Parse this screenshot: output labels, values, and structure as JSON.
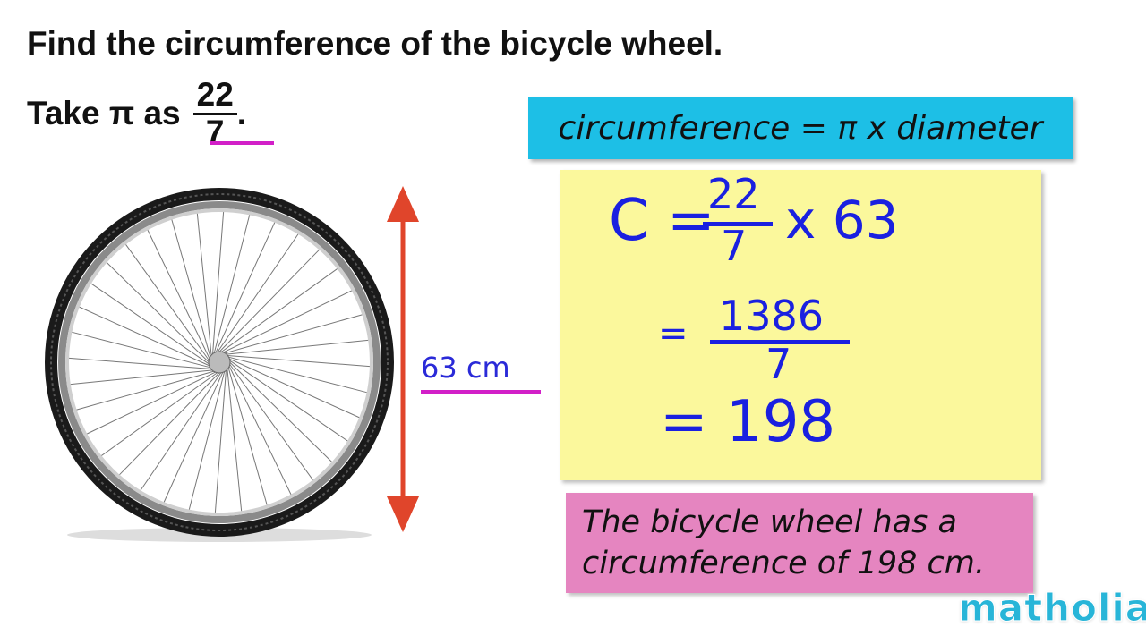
{
  "question": {
    "line1": "Find the circumference of the bicycle wheel.",
    "line2_prefix": "Take π as",
    "pi_numerator": "22",
    "pi_denominator": "7",
    "line2_suffix": "."
  },
  "diagram": {
    "diameter_label": "63 cm",
    "arrow_color": "#e0452b",
    "underline_color": "#d21fc8"
  },
  "formula_box": {
    "text": "circumference = π x diameter",
    "color": "#1dbfe6"
  },
  "working": {
    "color": "#fbf89c",
    "line1_lhs": "C =",
    "line1_num": "22",
    "line1_den": "7",
    "line1_rhs": "x 63",
    "line2_eq": "=",
    "line2_num": "1386",
    "line2_den": "7",
    "line3": "= 198"
  },
  "answer_box": {
    "line1": "The bicycle wheel has a",
    "line2": "circumference of 198 cm.",
    "color": "#e585c0"
  },
  "logo": "matholia"
}
